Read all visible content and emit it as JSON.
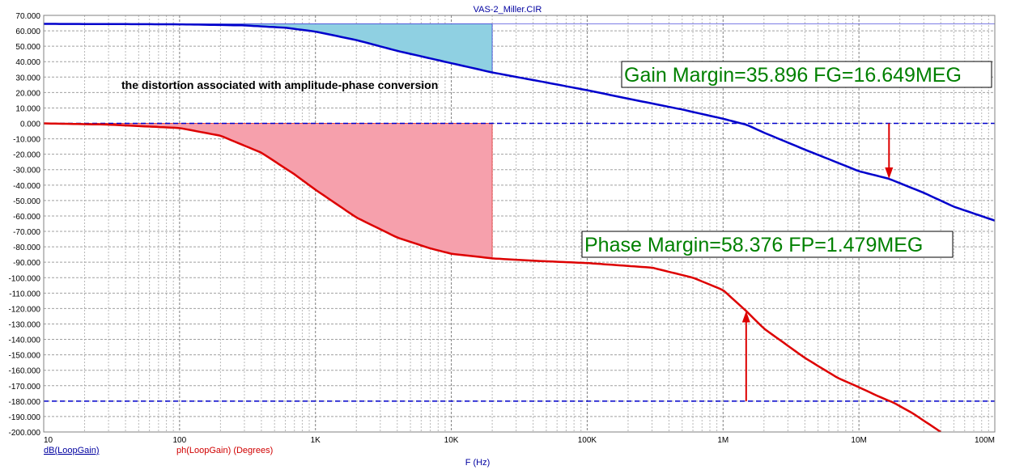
{
  "chart_data": {
    "type": "line",
    "title": "VAS-2_Miller.CIR",
    "xlabel": "F (Hz)",
    "x_scale": "log",
    "xlim": [
      10,
      100000000
    ],
    "ylim": [
      -200,
      70
    ],
    "grid": true,
    "x_tick_labels": [
      {
        "value": 10,
        "label": "10"
      },
      {
        "value": 100,
        "label": "100"
      },
      {
        "value": 1000,
        "label": "1K"
      },
      {
        "value": 10000,
        "label": "10K"
      },
      {
        "value": 100000,
        "label": "100K"
      },
      {
        "value": 1000000,
        "label": "1M"
      },
      {
        "value": 10000000,
        "label": "10M"
      },
      {
        "value": 100000000,
        "label": "100M"
      }
    ],
    "y_tick_labels": [
      "70.000",
      "60.000",
      "50.000",
      "40.000",
      "30.000",
      "20.000",
      "10.000",
      "0.000",
      "-10.000",
      "-20.000",
      "-30.000",
      "-40.000",
      "-50.000",
      "-60.000",
      "-70.000",
      "-80.000",
      "-90.000",
      "-100.000",
      "-110.000",
      "-120.000",
      "-130.000",
      "-140.000",
      "-150.000",
      "-160.000",
      "-170.000",
      "-180.000",
      "-190.000",
      "-200.000"
    ],
    "y_tick_values": [
      70,
      60,
      50,
      40,
      30,
      20,
      10,
      0,
      -10,
      -20,
      -30,
      -40,
      -50,
      -60,
      -70,
      -80,
      -90,
      -100,
      -110,
      -120,
      -130,
      -140,
      -150,
      -160,
      -170,
      -180,
      -190,
      -200
    ],
    "series": [
      {
        "name": "dB(LoopGain)",
        "color": "#0000cc",
        "points": [
          [
            10,
            64.5
          ],
          [
            100,
            64.2
          ],
          [
            300,
            63.5
          ],
          [
            600,
            62
          ],
          [
            1000,
            59.5
          ],
          [
            2000,
            54
          ],
          [
            4000,
            47
          ],
          [
            10000,
            39
          ],
          [
            20000,
            33
          ],
          [
            50000,
            26.5
          ],
          [
            100000,
            21.5
          ],
          [
            200000,
            16
          ],
          [
            500000,
            9
          ],
          [
            1000000,
            3
          ],
          [
            1500000,
            -1
          ],
          [
            2000000,
            -6
          ],
          [
            4000000,
            -17
          ],
          [
            10000000,
            -31
          ],
          [
            16649000,
            -35.9
          ],
          [
            30000000,
            -45
          ],
          [
            50000000,
            -54
          ],
          [
            100000000,
            -63
          ]
        ]
      },
      {
        "name": "ph(LoopGain) (Degrees)",
        "color": "#dd0000",
        "points": [
          [
            10,
            0
          ],
          [
            30,
            -0.8
          ],
          [
            100,
            -3
          ],
          [
            200,
            -8
          ],
          [
            400,
            -19
          ],
          [
            700,
            -33
          ],
          [
            1000,
            -43
          ],
          [
            2000,
            -61
          ],
          [
            4000,
            -74
          ],
          [
            7000,
            -81
          ],
          [
            10000,
            -84.5
          ],
          [
            20000,
            -87.5
          ],
          [
            40000,
            -89
          ],
          [
            100000,
            -90.5
          ],
          [
            300000,
            -93.5
          ],
          [
            600000,
            -100
          ],
          [
            1000000,
            -108
          ],
          [
            1479000,
            -121.6
          ],
          [
            2000000,
            -133
          ],
          [
            4000000,
            -152
          ],
          [
            7000000,
            -165
          ],
          [
            10000000,
            -171
          ],
          [
            14000000,
            -177
          ],
          [
            18000000,
            -181
          ],
          [
            25000000,
            -188
          ],
          [
            40000000,
            -200
          ]
        ]
      }
    ],
    "reference_lines": [
      {
        "y": 0,
        "color": "#0000cc",
        "style": "dashed"
      },
      {
        "y": -180,
        "color": "#0000cc",
        "style": "dashed"
      }
    ],
    "shaded_regions": [
      {
        "series": "dB(LoopGain)",
        "x_range": [
          20,
          20000
        ],
        "ceiling": 64.5,
        "color": "#8fd0e2"
      },
      {
        "series": "ph(LoopGain) (Degrees)",
        "x_range": [
          20,
          20000
        ],
        "ceiling": 0,
        "color": "#f6a0ac"
      }
    ],
    "markers": [
      {
        "x": 16649000,
        "from_y": 0,
        "to_y": -35.9,
        "color": "#dd0000"
      },
      {
        "x": 1479000,
        "from_y": -180,
        "to_y": -121.6,
        "color": "#dd0000"
      }
    ],
    "annotations": {
      "note": "the distortion associated with amplitude-phase conversion",
      "gain_margin": "Gain Margin=35.896 FG=16.649MEG",
      "phase_margin": "Phase Margin=58.376 FP=1.479MEG"
    }
  }
}
